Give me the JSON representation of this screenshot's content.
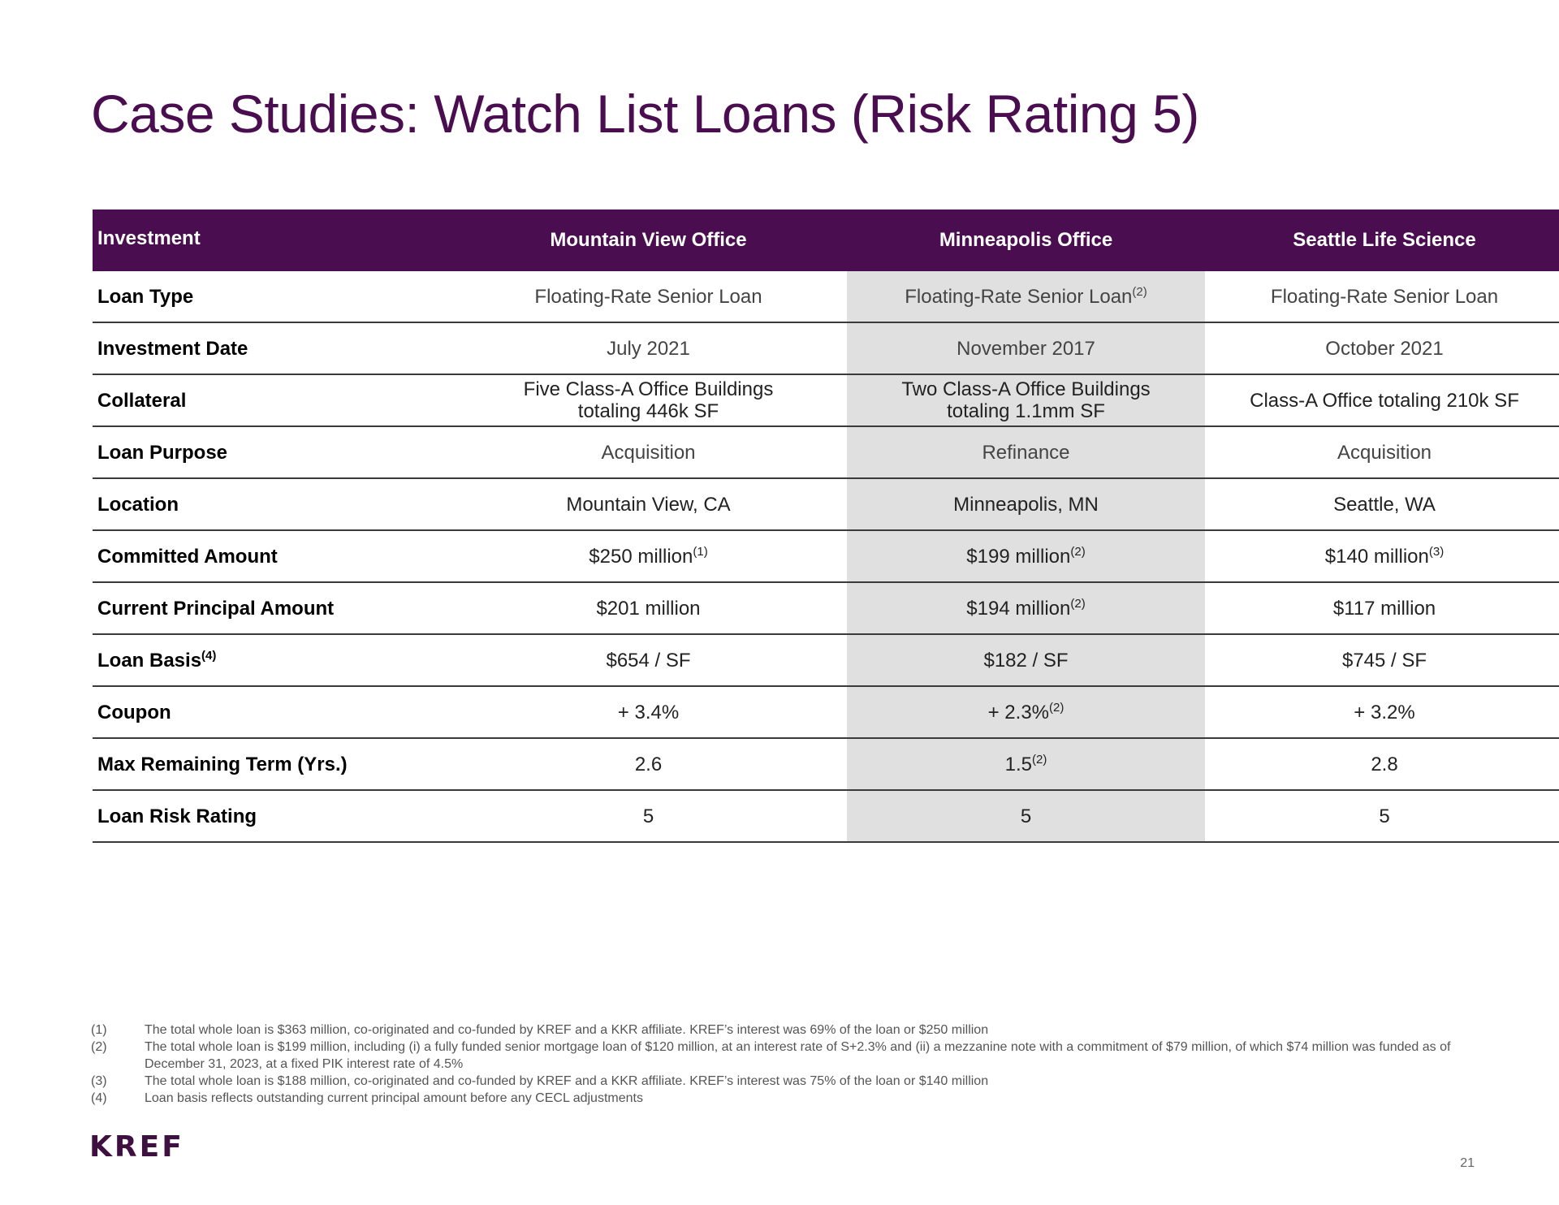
{
  "title": "Case Studies: Watch List Loans (Risk Rating 5)",
  "table": {
    "header": {
      "label": "Investment",
      "columns": [
        "Mountain View Office",
        "Minneapolis Office",
        "Seattle Life Science"
      ]
    },
    "rows": [
      {
        "label": "Loan Type",
        "label_sup": "",
        "cells": [
          {
            "text": "Floating-Rate Senior Loan",
            "sup": ""
          },
          {
            "text": "Floating-Rate Senior Loan",
            "sup": "(2)"
          },
          {
            "text": "Floating-Rate Senior Loan",
            "sup": ""
          }
        ]
      },
      {
        "label": "Investment Date",
        "label_sup": "",
        "cells": [
          {
            "text": "July 2021",
            "sup": ""
          },
          {
            "text": "November 2017",
            "sup": ""
          },
          {
            "text": "October 2021",
            "sup": ""
          }
        ]
      },
      {
        "label": "Collateral",
        "label_sup": "",
        "cells": [
          {
            "text": "Five Class-A Office Buildings totaling 446k SF",
            "sup": ""
          },
          {
            "text": "Two Class-A Office Buildings totaling 1.1mm SF",
            "sup": ""
          },
          {
            "text": "Class-A Office totaling 210k SF",
            "sup": ""
          }
        ]
      },
      {
        "label": "Loan Purpose",
        "label_sup": "",
        "cells": [
          {
            "text": "Acquisition",
            "sup": ""
          },
          {
            "text": "Refinance",
            "sup": ""
          },
          {
            "text": "Acquisition",
            "sup": ""
          }
        ]
      },
      {
        "label": "Location",
        "label_sup": "",
        "cells": [
          {
            "text": "Mountain View, CA",
            "sup": ""
          },
          {
            "text": "Minneapolis, MN",
            "sup": ""
          },
          {
            "text": "Seattle, WA",
            "sup": ""
          }
        ]
      },
      {
        "label": "Committed Amount",
        "label_sup": "",
        "cells": [
          {
            "text": "$250 million",
            "sup": "(1)"
          },
          {
            "text": "$199 million",
            "sup": "(2)"
          },
          {
            "text": "$140 million",
            "sup": "(3)"
          }
        ]
      },
      {
        "label": "Current Principal Amount",
        "label_sup": "",
        "cells": [
          {
            "text": "$201 million",
            "sup": ""
          },
          {
            "text": "$194 million",
            "sup": "(2)"
          },
          {
            "text": "$117 million",
            "sup": ""
          }
        ]
      },
      {
        "label": "Loan Basis",
        "label_sup": "(4)",
        "cells": [
          {
            "text": "$654 / SF",
            "sup": ""
          },
          {
            "text": "$182 / SF",
            "sup": ""
          },
          {
            "text": "$745 / SF",
            "sup": ""
          }
        ]
      },
      {
        "label": "Coupon",
        "label_sup": "",
        "cells": [
          {
            "text": "+ 3.4%",
            "sup": ""
          },
          {
            "text": "+ 2.3%",
            "sup": "(2)"
          },
          {
            "text": "+ 3.2%",
            "sup": ""
          }
        ]
      },
      {
        "label": "Max Remaining Term (Yrs.)",
        "label_sup": "",
        "cells": [
          {
            "text": "2.6",
            "sup": ""
          },
          {
            "text": "1.5",
            "sup": "(2)"
          },
          {
            "text": "2.8",
            "sup": ""
          }
        ]
      },
      {
        "label": "Loan Risk Rating",
        "label_sup": "",
        "cells": [
          {
            "text": "5",
            "sup": ""
          },
          {
            "text": "5",
            "sup": ""
          },
          {
            "text": "5",
            "sup": ""
          }
        ]
      }
    ]
  },
  "footnotes": [
    {
      "num": "(1)",
      "text": "The total whole loan is $363 million, co-originated and co-funded by KREF and a KKR affiliate. KREF’s interest was 69% of the loan or $250 million"
    },
    {
      "num": "(2)",
      "text": "The total whole loan is $199 million, including (i) a fully funded senior mortgage loan of $120 million, at an interest rate of S+2.3% and (ii) a mezzanine note with a commitment of $79 million, of which $74 million was funded as of December 31, 2023, at a fixed PIK interest rate of 4.5%"
    },
    {
      "num": "(3)",
      "text": "The total whole loan is $188 million, co-originated and co-funded by KREF and a KKR affiliate. KREF’s interest was 75% of the loan or $140 million"
    },
    {
      "num": "(4)",
      "text": "Loan basis reflects outstanding current principal amount before any CECL adjustments"
    }
  ],
  "logo": "KREF",
  "page_number": "21",
  "colors": {
    "brand_purple": "#4a0e50",
    "shade_gray": "#e0e0e0"
  }
}
